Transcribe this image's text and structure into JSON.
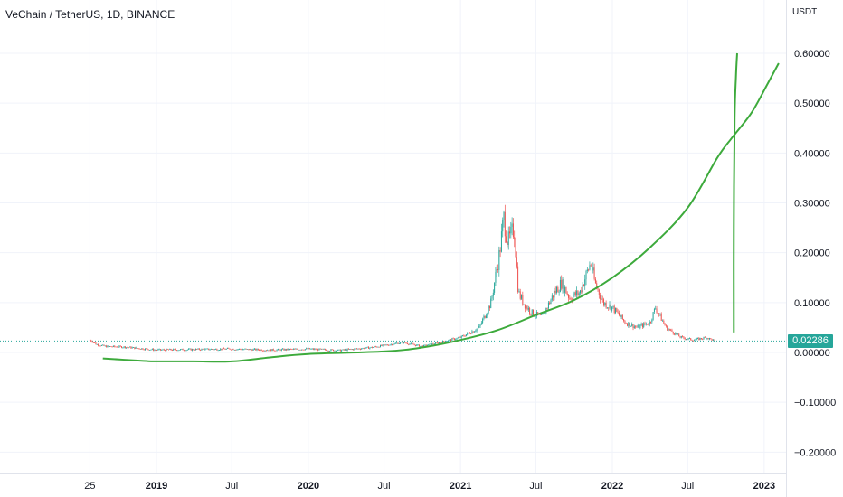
{
  "header": {
    "title": "VeChain / TetherUS, 1D, BINANCE"
  },
  "y_axis": {
    "unit_label": "USDT",
    "ticks": [
      "0.60000",
      "0.50000",
      "0.40000",
      "0.30000",
      "0.20000",
      "0.10000",
      "0.00000",
      "−0.10000",
      "−0.20000"
    ]
  },
  "x_axis": {
    "ticks": [
      {
        "label": "25",
        "bold": false
      },
      {
        "label": "2019",
        "bold": true
      },
      {
        "label": "Jul",
        "bold": false
      },
      {
        "label": "2020",
        "bold": true
      },
      {
        "label": "Jul",
        "bold": false
      },
      {
        "label": "2021",
        "bold": true
      },
      {
        "label": "Jul",
        "bold": false
      },
      {
        "label": "2022",
        "bold": true
      },
      {
        "label": "Jul",
        "bold": false
      },
      {
        "label": "2023",
        "bold": true
      }
    ]
  },
  "current_price": {
    "label": "0.02286",
    "value": 0.02286
  },
  "colors": {
    "up": "#26a69a",
    "down": "#ef5350",
    "drawing": "#3daa3c",
    "price_line": "#26a69a"
  },
  "chart_data": {
    "type": "line",
    "title": "VeChain / TetherUS, 1D, BINANCE",
    "xlabel": "",
    "ylabel": "USDT",
    "ylim": [
      -0.25,
      0.66
    ],
    "x_range": [
      "2018-07-25",
      "2023-02-15"
    ],
    "grid": true,
    "series": [
      {
        "style": "candlestick-approx",
        "x": [
          "2018-07-25",
          "2018-08-10",
          "2018-09-01",
          "2018-10-15",
          "2019-01-01",
          "2019-04-01",
          "2019-07-01",
          "2019-10-01",
          "2020-01-01",
          "2020-03-15",
          "2020-06-01",
          "2020-08-15",
          "2020-10-01",
          "2021-01-01",
          "2021-02-15",
          "2021-03-15",
          "2021-04-05",
          "2021-04-15",
          "2021-04-25",
          "2021-05-10",
          "2021-05-20",
          "2021-06-01",
          "2021-06-20",
          "2021-07-15",
          "2021-08-15",
          "2021-09-01",
          "2021-09-20",
          "2021-10-15",
          "2021-11-01",
          "2021-11-10",
          "2021-11-20",
          "2021-12-10",
          "2022-01-01",
          "2022-02-01",
          "2022-03-01",
          "2022-04-01",
          "2022-04-15",
          "2022-05-10",
          "2022-06-15",
          "2022-07-15",
          "2022-08-15",
          "2022-09-05"
        ],
        "values": [
          0.025,
          0.016,
          0.012,
          0.011,
          0.005,
          0.006,
          0.007,
          0.005,
          0.007,
          0.004,
          0.01,
          0.02,
          0.012,
          0.03,
          0.05,
          0.1,
          0.2,
          0.27,
          0.22,
          0.25,
          0.12,
          0.1,
          0.08,
          0.07,
          0.12,
          0.14,
          0.11,
          0.12,
          0.16,
          0.18,
          0.14,
          0.1,
          0.09,
          0.06,
          0.05,
          0.06,
          0.09,
          0.05,
          0.03,
          0.025,
          0.03,
          0.023
        ]
      },
      {
        "style": "drawn-curve",
        "x": [
          "2018-08-25",
          "2018-12-01",
          "2019-01-01",
          "2019-04-01",
          "2019-07-01",
          "2019-10-01",
          "2020-01-01",
          "2020-07-01",
          "2020-10-01",
          "2021-01-01",
          "2021-04-01",
          "2021-07-01",
          "2021-10-01",
          "2022-01-01",
          "2022-04-01",
          "2022-07-01",
          "2022-09-10",
          "2022-10-15",
          "2022-12-01",
          "2023-01-10",
          "2023-02-05"
        ],
        "values": [
          -0.012,
          -0.017,
          -0.018,
          -0.018,
          -0.018,
          -0.01,
          -0.003,
          0.002,
          0.01,
          0.025,
          0.045,
          0.075,
          0.105,
          0.15,
          0.21,
          0.29,
          0.39,
          0.43,
          0.48,
          0.54,
          0.58
        ]
      },
      {
        "style": "drawn-vertical",
        "x": [
          "2022-10-20",
          "2022-10-20",
          "2022-10-22",
          "2022-10-25",
          "2022-10-28"
        ],
        "values": [
          0.04,
          0.25,
          0.47,
          0.55,
          0.6
        ]
      }
    ]
  }
}
